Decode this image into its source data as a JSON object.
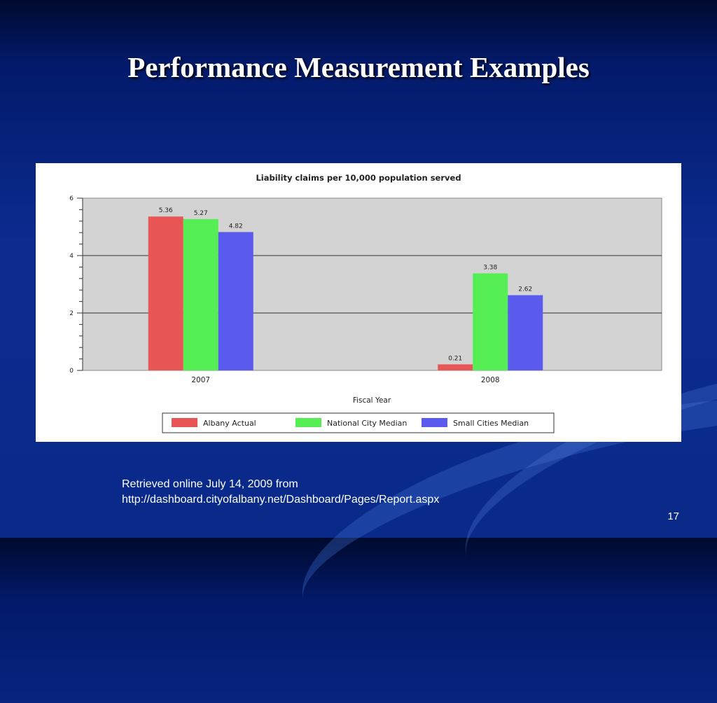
{
  "slide": {
    "title": "Performance Measurement Examples",
    "caption_line1": "Retrieved online July 14, 2009 from",
    "caption_line2": "http://dashboard.cityofalbany.net/Dashboard/Pages/Report.aspx",
    "slide_number": "17"
  },
  "chart_data": {
    "type": "bar",
    "title": "Liability claims per 10,000 population served",
    "xlabel": "Fiscal Year",
    "ylabel": "",
    "categories": [
      "2007",
      "2008"
    ],
    "ylim": [
      0,
      6
    ],
    "yticks": [
      "0",
      "2",
      "4",
      "6"
    ],
    "grid": true,
    "legend_position": "bottom",
    "series": [
      {
        "name": "Albany Actual",
        "values": [
          5.36,
          0.21
        ],
        "labels": [
          "5.36",
          "0.21"
        ],
        "color": "#e85555"
      },
      {
        "name": "National City Median",
        "values": [
          5.27,
          3.38
        ],
        "labels": [
          "5.27",
          "3.38"
        ],
        "color": "#55ee55"
      },
      {
        "name": "Small Cities Median",
        "values": [
          4.82,
          2.62
        ],
        "labels": [
          "4.82",
          "2.62"
        ],
        "color": "#5a5aee"
      }
    ],
    "plot_background": "#d3d3d3"
  }
}
